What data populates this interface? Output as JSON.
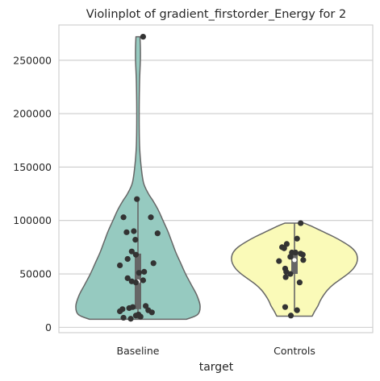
{
  "chart_data": {
    "type": "violin",
    "title": "Violinplot of gradient_firstorder_Energy for 2",
    "xlabel": "target",
    "ylabel": "",
    "categories": [
      "Baseline",
      "Controls"
    ],
    "ylim": [
      -5000,
      283000
    ],
    "yticks": [
      0,
      50000,
      100000,
      150000,
      200000,
      250000
    ],
    "grid": true,
    "colors": {
      "Baseline": "#96cac0",
      "Controls": "#fafab8",
      "outline": "#666666",
      "points": "#333333",
      "box": "#666666",
      "grid": "#cccccc",
      "frame": "#cccccc"
    },
    "series": [
      {
        "category": "Baseline",
        "range": [
          7500,
          272000
        ],
        "box": {
          "q1": 17000,
          "median": 43000,
          "q3": 69000,
          "whisker_low": 7500,
          "whisker_high": 120000
        },
        "density": [
          [
            7500,
            60
          ],
          [
            12000,
            74
          ],
          [
            20000,
            77
          ],
          [
            30000,
            73
          ],
          [
            40000,
            66
          ],
          [
            50000,
            59
          ],
          [
            60000,
            53
          ],
          [
            70000,
            47
          ],
          [
            80000,
            42
          ],
          [
            90000,
            37
          ],
          [
            100000,
            31
          ],
          [
            110000,
            25
          ],
          [
            118000,
            19
          ],
          [
            125000,
            13
          ],
          [
            135000,
            7
          ],
          [
            150000,
            4
          ],
          [
            170000,
            2
          ],
          [
            200000,
            1.5
          ],
          [
            230000,
            2
          ],
          [
            250000,
            3
          ],
          [
            262000,
            3
          ],
          [
            272000,
            2.5
          ]
        ],
        "points": [
          [
            272000,
            0.1
          ],
          [
            120000,
            -0.02
          ],
          [
            103000,
            -0.28
          ],
          [
            103000,
            0.25
          ],
          [
            90000,
            -0.08
          ],
          [
            89000,
            -0.22
          ],
          [
            88000,
            0.38
          ],
          [
            82000,
            -0.05
          ],
          [
            71000,
            -0.12
          ],
          [
            68000,
            -0.04
          ],
          [
            64000,
            -0.2
          ],
          [
            60000,
            0.3
          ],
          [
            58000,
            -0.35
          ],
          [
            52000,
            0.12
          ],
          [
            51000,
            0.02
          ],
          [
            46000,
            -0.2
          ],
          [
            44000,
            0.1
          ],
          [
            43000,
            -0.12
          ],
          [
            42000,
            -0.04
          ],
          [
            20000,
            0.15
          ],
          [
            19000,
            -0.1
          ],
          [
            18000,
            -0.17
          ],
          [
            17000,
            -0.3
          ],
          [
            16000,
            0.2
          ],
          [
            15000,
            -0.35
          ],
          [
            14000,
            0.27
          ],
          [
            12000,
            0.01
          ],
          [
            11000,
            -0.04
          ],
          [
            10000,
            0.05
          ],
          [
            9000,
            -0.28
          ],
          [
            8000,
            -0.14
          ]
        ]
      },
      {
        "category": "Controls",
        "range": [
          10500,
          97500
        ],
        "box": {
          "q1": 50000,
          "median": 63000,
          "q3": 70000,
          "whisker_low": 15000,
          "whisker_high": 97500
        },
        "density": [
          [
            10500,
            22
          ],
          [
            15000,
            25
          ],
          [
            20000,
            29
          ],
          [
            25000,
            32
          ],
          [
            30000,
            36
          ],
          [
            35000,
            41
          ],
          [
            40000,
            48
          ],
          [
            45000,
            57
          ],
          [
            50000,
            66
          ],
          [
            55000,
            73
          ],
          [
            60000,
            77
          ],
          [
            65000,
            78
          ],
          [
            70000,
            76
          ],
          [
            75000,
            70
          ],
          [
            80000,
            60
          ],
          [
            85000,
            48
          ],
          [
            90000,
            34
          ],
          [
            95000,
            20
          ],
          [
            97500,
            12
          ]
        ],
        "points": [
          [
            97500,
            0.12
          ],
          [
            83000,
            0.05
          ],
          [
            78000,
            -0.15
          ],
          [
            75000,
            -0.24
          ],
          [
            74000,
            -0.2
          ],
          [
            70000,
            -0.05
          ],
          [
            70000,
            0.02
          ],
          [
            69000,
            0.12
          ],
          [
            68000,
            0.16
          ],
          [
            66000,
            -0.08
          ],
          [
            63000,
            0.17
          ],
          [
            62000,
            -0.3
          ],
          [
            55000,
            -0.18
          ],
          [
            52000,
            -0.16
          ],
          [
            50000,
            -0.08
          ],
          [
            47000,
            -0.17
          ],
          [
            42000,
            0.1
          ],
          [
            19000,
            -0.18
          ],
          [
            16000,
            0.05
          ],
          [
            11000,
            -0.07
          ]
        ]
      }
    ]
  }
}
